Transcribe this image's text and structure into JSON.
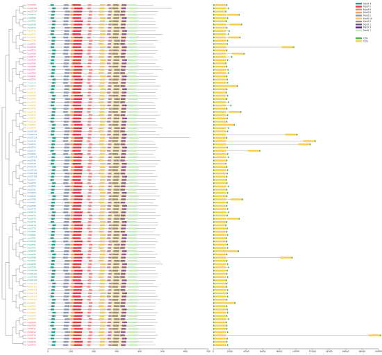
{
  "chart_data": {
    "type": "diagram",
    "panels": [
      "phylogenetic-tree",
      "motif-distribution",
      "gene-structure"
    ],
    "motif_axis_ticks": [
      "0",
      "100",
      "200",
      "300",
      "400",
      "500",
      "600",
      "700"
    ],
    "structure_axis_ticks": [
      "0",
      "2000",
      "4000",
      "6000",
      "8000",
      "10000",
      "12000",
      "14000",
      "16000",
      "18000",
      "20000"
    ],
    "legend_motifs": [
      {
        "label": "Motif 4",
        "color": "#2a9d8f"
      },
      {
        "label": "Motif 5",
        "color": "#e63946"
      },
      {
        "label": "Motif 6",
        "color": "#f28482"
      },
      {
        "label": "Motif 8",
        "color": "#f4a261"
      },
      {
        "label": "Motif 2",
        "color": "#8d99ae"
      },
      {
        "label": "Motif 10",
        "color": "#e9c46a"
      },
      {
        "label": "Motif 9",
        "color": "#b5838d"
      },
      {
        "label": "Motif 1",
        "color": "#6d597a"
      },
      {
        "label": "Motif 3",
        "color": "#5a189a"
      },
      {
        "label": "Motif 7",
        "color": "#c7e9c0"
      }
    ],
    "legend_structure": [
      {
        "label": "UTR",
        "color": "#4caf50"
      },
      {
        "label": "CDS",
        "color": "#f6d04d"
      }
    ],
    "genes": [
      {
        "name": "HvUGT88",
        "color": "#e63946"
      },
      {
        "name": "HvUGT109",
        "color": "#e63946"
      },
      {
        "name": "HvUGT107",
        "color": "#e63946"
      },
      {
        "name": "HvUGT73",
        "color": "#1b9e77"
      },
      {
        "name": "HvUGT60",
        "color": "#1b9e77"
      },
      {
        "name": "HvUGT51",
        "color": "#1b9e77"
      },
      {
        "name": "HvUGT48",
        "color": "#1b9e77"
      },
      {
        "name": "HvUGT14",
        "color": "#1b9e77"
      },
      {
        "name": "HvUGT32",
        "color": "#e6ab02"
      },
      {
        "name": "HvUGT71",
        "color": "#e6ab02"
      },
      {
        "name": "HvUGT23",
        "color": "#e6ab02"
      },
      {
        "name": "HvUGT95",
        "color": "#e6ab02"
      },
      {
        "name": "HvUGT55",
        "color": "#e7298a"
      },
      {
        "name": "HvUGT42",
        "color": "#e7298a"
      },
      {
        "name": "HvUGT13",
        "color": "#e7298a"
      },
      {
        "name": "HvUGT69",
        "color": "#e7298a"
      },
      {
        "name": "HvUGT77",
        "color": "#e7298a"
      },
      {
        "name": "HvUGT84",
        "color": "#e7298a"
      },
      {
        "name": "HvUGT85",
        "color": "#e7298a"
      },
      {
        "name": "HvUGT86",
        "color": "#e7298a"
      },
      {
        "name": "HvUGT87",
        "color": "#e7298a"
      },
      {
        "name": "HvUGT89",
        "color": "#e7298a"
      },
      {
        "name": "HvUGT41",
        "color": "#e7298a"
      },
      {
        "name": "HvUGT63",
        "color": "#e7298a"
      },
      {
        "name": "HvUGT38",
        "color": "#66c2a5"
      },
      {
        "name": "HvUGT47",
        "color": "#66c2a5"
      },
      {
        "name": "HvUGT17",
        "color": "#e6ab02"
      },
      {
        "name": "HvUGT35",
        "color": "#e6ab02"
      },
      {
        "name": "HvUGT56",
        "color": "#e6ab02"
      },
      {
        "name": "HvUGT06",
        "color": "#e6ab02"
      },
      {
        "name": "HvUGT24",
        "color": "#e6ab02"
      },
      {
        "name": "HvUGT52",
        "color": "#e6ab02"
      },
      {
        "name": "HvUGT10",
        "color": "#e6ab02"
      },
      {
        "name": "HvUGT18",
        "color": "#e6ab02"
      },
      {
        "name": "HvUGT15",
        "color": "#e6ab02"
      },
      {
        "name": "HvUGT21",
        "color": "#e6ab02"
      },
      {
        "name": "HvUGT34",
        "color": "#e6ab02"
      },
      {
        "name": "HvUGT82",
        "color": "#e6ab02"
      },
      {
        "name": "HvUGT29",
        "color": "#e6ab02"
      },
      {
        "name": "HvUGT104",
        "color": "#3182bd"
      },
      {
        "name": "HvUGT111",
        "color": "#3182bd"
      },
      {
        "name": "HvUGT118",
        "color": "#3182bd"
      },
      {
        "name": "HvUGT36",
        "color": "#3182bd"
      },
      {
        "name": "HvUGT44",
        "color": "#3182bd"
      },
      {
        "name": "HvUGT53",
        "color": "#3182bd"
      },
      {
        "name": "HvUGT27",
        "color": "#3182bd"
      },
      {
        "name": "HvUGT62",
        "color": "#3182bd"
      },
      {
        "name": "HvUGT114",
        "color": "#3182bd"
      },
      {
        "name": "HvUGT40",
        "color": "#3182bd"
      },
      {
        "name": "HvUGT49",
        "color": "#3182bd"
      },
      {
        "name": "HvUGT54",
        "color": "#3182bd"
      },
      {
        "name": "HvUGT105",
        "color": "#3182bd"
      },
      {
        "name": "HvUGT106",
        "color": "#3182bd"
      },
      {
        "name": "HvUGT108",
        "color": "#3182bd"
      },
      {
        "name": "HvUGT57",
        "color": "#3182bd"
      },
      {
        "name": "HvUGT58",
        "color": "#3182bd"
      },
      {
        "name": "HvUGT59",
        "color": "#3182bd"
      },
      {
        "name": "HvUGT61",
        "color": "#3182bd"
      },
      {
        "name": "HvUGT64",
        "color": "#3182bd"
      },
      {
        "name": "HvUGT65",
        "color": "#3182bd"
      },
      {
        "name": "HvUGT66",
        "color": "#3182bd"
      },
      {
        "name": "HvUGT67",
        "color": "#3182bd"
      },
      {
        "name": "HvUGT68",
        "color": "#3182bd"
      },
      {
        "name": "HvUGT70",
        "color": "#3182bd"
      },
      {
        "name": "HvUGT72",
        "color": "#1b9e77"
      },
      {
        "name": "HvUGT74",
        "color": "#1b9e77"
      },
      {
        "name": "HvUGT75",
        "color": "#1b9e77"
      },
      {
        "name": "HvUGT76",
        "color": "#1b9e77"
      },
      {
        "name": "HvUGT78",
        "color": "#1b9e77"
      },
      {
        "name": "HvUGT79",
        "color": "#1b9e77"
      },
      {
        "name": "HvUGT80",
        "color": "#1b9e77"
      },
      {
        "name": "HvUGT81",
        "color": "#1b9e77"
      },
      {
        "name": "HvUGT83",
        "color": "#1b9e77"
      },
      {
        "name": "HvUGT90",
        "color": "#1b9e77"
      },
      {
        "name": "HvUGT91",
        "color": "#1b9e77"
      },
      {
        "name": "HvUGT92",
        "color": "#1b9e77"
      },
      {
        "name": "HvUGT93",
        "color": "#1b9e77"
      },
      {
        "name": "HvUGT94",
        "color": "#1b9e77"
      },
      {
        "name": "HvUGT96",
        "color": "#1b9e77"
      },
      {
        "name": "HvUGT97",
        "color": "#1b9e77"
      },
      {
        "name": "HvUGT98",
        "color": "#1b9e77"
      },
      {
        "name": "HvUGT99",
        "color": "#1b9e77"
      },
      {
        "name": "HvUGT100",
        "color": "#1b9e77"
      },
      {
        "name": "HvUGT101",
        "color": "#1b9e77"
      },
      {
        "name": "HvUGT102",
        "color": "#1b9e77"
      },
      {
        "name": "HvUGT103",
        "color": "#1b9e77"
      },
      {
        "name": "HvUGT110",
        "color": "#e6ab02"
      },
      {
        "name": "HvUGT112",
        "color": "#e6ab02"
      },
      {
        "name": "HvUGT113",
        "color": "#e6ab02"
      },
      {
        "name": "HvUGT115",
        "color": "#e6ab02"
      },
      {
        "name": "HvUGT116",
        "color": "#e6ab02"
      },
      {
        "name": "HvUGT117",
        "color": "#e6ab02"
      },
      {
        "name": "HvUGT01",
        "color": "#e6ab02"
      },
      {
        "name": "HvUGT02",
        "color": "#e6ab02"
      },
      {
        "name": "HvUGT03",
        "color": "#e6ab02"
      },
      {
        "name": "HvUGT04",
        "color": "#e6ab02"
      },
      {
        "name": "HvUGT05",
        "color": "#e6ab02"
      },
      {
        "name": "HvUGT07",
        "color": "#e6ab02"
      },
      {
        "name": "HvUGT08",
        "color": "#e63946"
      },
      {
        "name": "HvUGT09",
        "color": "#e63946"
      },
      {
        "name": "HvUGT11",
        "color": "#e63946"
      },
      {
        "name": "HvUGT12",
        "color": "#e63946"
      },
      {
        "name": "HvUGT16",
        "color": "#e63946"
      },
      {
        "name": "HvUGT19",
        "color": "#e63946"
      },
      {
        "name": "HvUGT20",
        "color": "#e63946"
      },
      {
        "name": "HvUGT22",
        "color": "#e63946"
      }
    ],
    "protein_length_aa": [
      460,
      540,
      480,
      470,
      460,
      470,
      470,
      480,
      470,
      500,
      470,
      480,
      460,
      470,
      480,
      470,
      460,
      480,
      470,
      490,
      500,
      460,
      480,
      470,
      470,
      490,
      480,
      470,
      470,
      480,
      460,
      470,
      470,
      480,
      490,
      470,
      470,
      480,
      500,
      470,
      490,
      620,
      460,
      470,
      480,
      470,
      460,
      470,
      490,
      480,
      470,
      470,
      460,
      480,
      470,
      470,
      470,
      480,
      470,
      490,
      470,
      460,
      480,
      470,
      470,
      490,
      470,
      480,
      480,
      470,
      460,
      490,
      470,
      480,
      470,
      470,
      460,
      480,
      470,
      490,
      500,
      470,
      470,
      480,
      480,
      470,
      460,
      480,
      470,
      470,
      480,
      490,
      470,
      470,
      460,
      480,
      470,
      470,
      480,
      460,
      470,
      470,
      480,
      470,
      460,
      470
    ],
    "gene_length_bp": [
      1700,
      1900,
      1600,
      3200,
      1800,
      1650,
      3500,
      1700,
      2000,
      1900,
      3300,
      1800,
      1750,
      9800,
      1700,
      3800,
      2300,
      1800,
      1600,
      1700,
      1850,
      1900,
      1700,
      1750,
      1800,
      3000,
      1700,
      1650,
      1800,
      1700,
      1900,
      2200,
      1700,
      3400,
      1800,
      1750,
      1700,
      2600,
      1900,
      1800,
      10200,
      1700,
      12400,
      11800,
      1750,
      5700,
      1800,
      1900,
      1700,
      1600,
      1700,
      1800,
      1750,
      1700,
      1650,
      1700,
      1900,
      1700,
      1800,
      1700,
      3600,
      1750,
      1700,
      1800,
      1900,
      1750,
      3200,
      1700,
      1600,
      1750,
      1700,
      1800,
      1650,
      1700,
      1750,
      1800,
      3100,
      1700,
      9600,
      1700,
      1800,
      1900,
      1750,
      1700,
      1800,
      1650,
      1700,
      1700,
      1800,
      1750,
      1800,
      1700,
      2700,
      1700,
      1750,
      1800,
      1700,
      1900,
      1650,
      1700,
      1700,
      1800,
      20300,
      1750,
      1700,
      1800
    ]
  }
}
